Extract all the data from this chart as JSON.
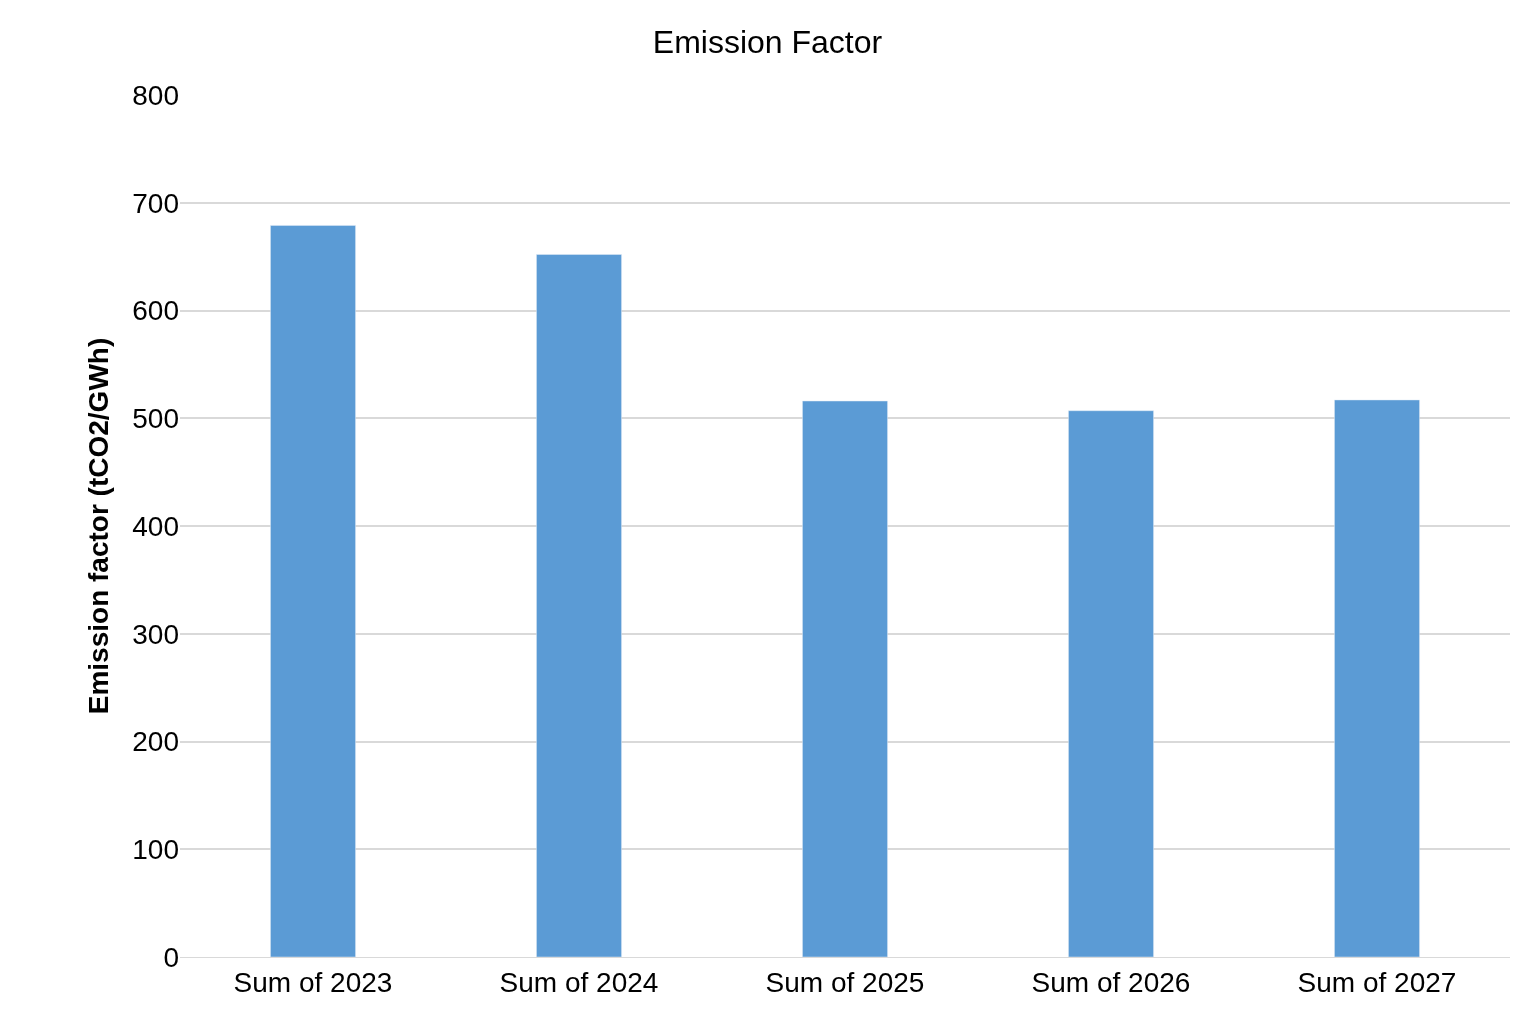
{
  "chart_data": {
    "type": "bar",
    "title": "Emission Factor",
    "ylabel": "Emission factor (tCO2/GWh)",
    "categories": [
      "Sum of 2023",
      "Sum of 2024",
      "Sum of 2025",
      "Sum of 2026",
      "Sum of 2027"
    ],
    "values": [
      679,
      652,
      516,
      507,
      517
    ],
    "color": "#5b9bd5",
    "ylim": [
      0,
      800
    ],
    "yticks": [
      0,
      100,
      200,
      300,
      400,
      500,
      600,
      700,
      800
    ],
    "grid": "y"
  }
}
